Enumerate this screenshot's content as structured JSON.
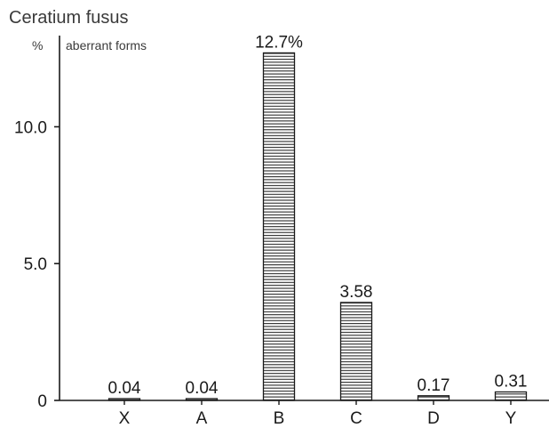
{
  "chart_data": {
    "type": "bar",
    "title": "Ceratium fusus",
    "ylabel_prefix": "%",
    "ylabel": "aberrant forms",
    "categories": [
      "X",
      "A",
      "B",
      "C",
      "D",
      "Y"
    ],
    "values": [
      0.04,
      0.04,
      12.7,
      3.58,
      0.17,
      0.31
    ],
    "data_labels": [
      "0.04",
      "0.04",
      "12.7%",
      "3.58",
      "0.17",
      "0.31"
    ],
    "yticks": [
      0,
      5.0,
      10.0
    ],
    "ytick_labels": [
      "0",
      "5.0",
      "10.0"
    ],
    "ylim": [
      0,
      13.3
    ],
    "bar_fill": "horizontal-hatch",
    "grid": false,
    "legend": false,
    "colors": {
      "ink": "#1a1a1a",
      "hatch": "#2a2a2a",
      "background": "#ffffff"
    }
  }
}
